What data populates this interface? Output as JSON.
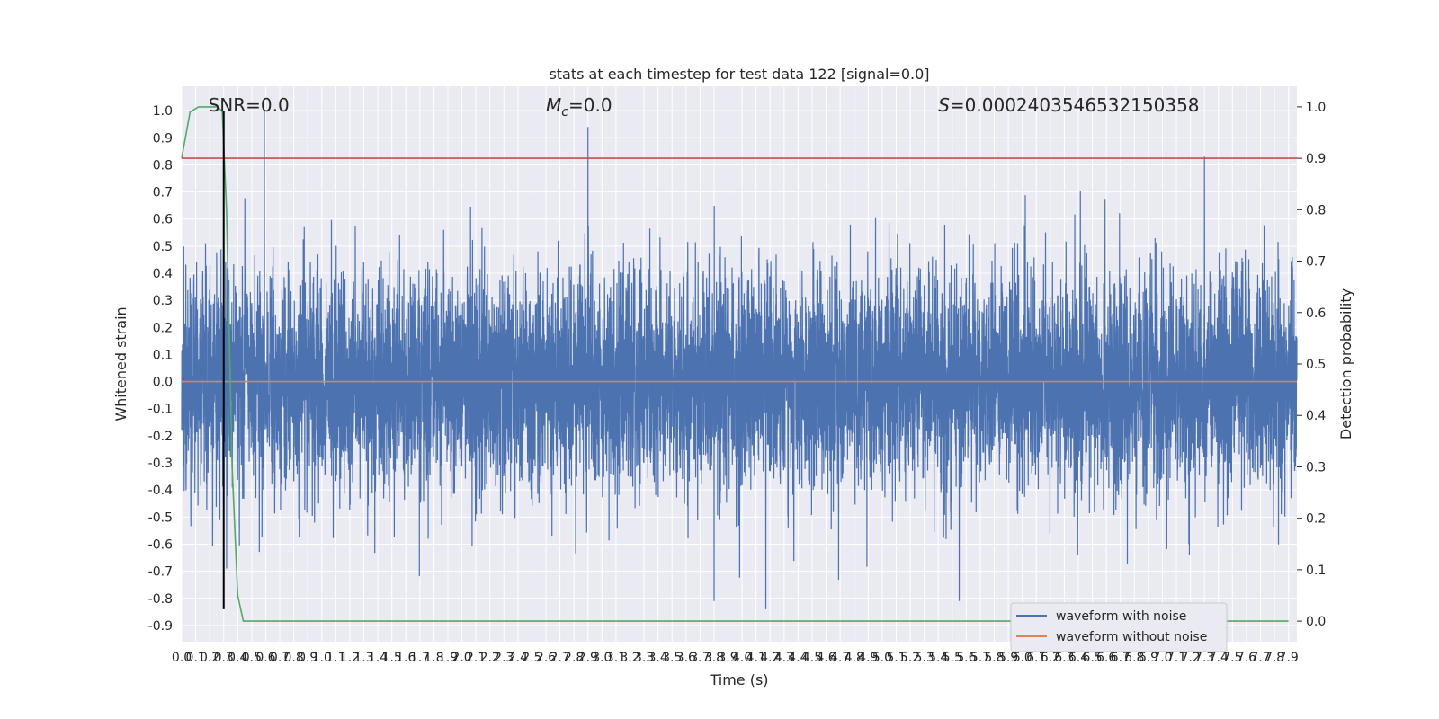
{
  "chart_data": {
    "type": "line",
    "title": "stats at each timestep for test data 122 [signal=0.0]",
    "xlabel": "Time (s)",
    "ylabel": "Whitened strain",
    "y2label": "Detection probability",
    "xlim": [
      0.0,
      7.96
    ],
    "ylim": [
      -0.96,
      1.09
    ],
    "y2lim": [
      -0.04,
      1.04
    ],
    "x_ticks": [
      "0.0",
      "0.1",
      "0.2",
      "0.3",
      "0.4",
      "0.5",
      "0.6",
      "0.7",
      "0.8",
      "0.9",
      "1.0",
      "1.1",
      "1.2",
      "1.3",
      "1.4",
      "1.5",
      "1.6",
      "1.7",
      "1.8",
      "1.9",
      "2.0",
      "2.1",
      "2.2",
      "2.3",
      "2.4",
      "2.5",
      "2.6",
      "2.7",
      "2.8",
      "2.9",
      "3.0",
      "3.1",
      "3.2",
      "3.3",
      "3.4",
      "3.5",
      "3.6",
      "3.7",
      "3.8",
      "3.9",
      "4.0",
      "4.1",
      "4.2",
      "4.3",
      "4.4",
      "4.5",
      "4.6",
      "4.7",
      "4.8",
      "4.9",
      "5.0",
      "5.1",
      "5.2",
      "5.3",
      "5.4",
      "5.5",
      "5.6",
      "5.7",
      "5.8",
      "5.9",
      "6.0",
      "6.1",
      "6.2",
      "6.3",
      "6.4",
      "6.5",
      "6.6",
      "6.7",
      "6.8",
      "6.9",
      "7.0",
      "7.1",
      "7.2",
      "7.3",
      "7.4",
      "7.5",
      "7.6",
      "7.7",
      "7.8",
      "7.9"
    ],
    "y_ticks": [
      "-0.9",
      "-0.8",
      "-0.7",
      "-0.6",
      "-0.5",
      "-0.4",
      "-0.3",
      "-0.2",
      "-0.1",
      "0.0",
      "0.1",
      "0.2",
      "0.3",
      "0.4",
      "0.5",
      "0.6",
      "0.7",
      "0.8",
      "0.9",
      "1.0"
    ],
    "y2_ticks": [
      "0.0",
      "0.1",
      "0.2",
      "0.3",
      "0.4",
      "0.5",
      "0.6",
      "0.7",
      "0.8",
      "0.9",
      "1.0"
    ],
    "series": [
      {
        "name": "waveform with noise",
        "axis": "left",
        "kind": "noise",
        "sigma": 0.2,
        "x_range": [
          0.0,
          7.96
        ],
        "peaks": [
          {
            "x": 0.59,
            "y": 1.0
          },
          {
            "x": 2.9,
            "y": 0.94
          },
          {
            "x": 7.3,
            "y": 0.83
          },
          {
            "x": 0.32,
            "y": -0.69
          },
          {
            "x": 4.17,
            "y": -0.84
          },
          {
            "x": 3.8,
            "y": -0.81
          },
          {
            "x": 5.55,
            "y": -0.81
          }
        ]
      },
      {
        "name": "waveform without noise",
        "axis": "left",
        "x": [
          0.0,
          7.96
        ],
        "y": [
          0.0,
          0.0
        ]
      },
      {
        "name": "detection probability",
        "axis": "right",
        "x": [
          0.0,
          0.06,
          0.12,
          0.2,
          0.26,
          0.29,
          0.32,
          0.36,
          0.4,
          0.44,
          7.9
        ],
        "y": [
          0.9,
          0.99,
          1.0,
          1.0,
          1.0,
          0.99,
          0.8,
          0.3,
          0.05,
          0.0,
          0.0
        ]
      },
      {
        "name": "threshold",
        "axis": "right",
        "x": [
          0.0,
          7.96
        ],
        "y": [
          0.9,
          0.9
        ]
      },
      {
        "name": "marker",
        "axis": "left",
        "x": [
          0.3,
          0.3
        ],
        "y": [
          1.0,
          -0.84
        ]
      }
    ],
    "legend": {
      "placement": "lower-right",
      "entries": [
        "waveform with noise",
        "waveform without noise"
      ]
    },
    "annotations": [
      {
        "prefix": "SNR",
        "text": "=0.0",
        "x": 0.19
      },
      {
        "prefix": "M",
        "subscript": "c",
        "text": "=0.0",
        "x": 2.6
      },
      {
        "prefix": "S",
        "text": "=0.0002403546532150358",
        "x": 5.4
      }
    ],
    "grid": true,
    "colors": {
      "noise": "#4c72b0",
      "clean": "#dd8452",
      "probability": "#55a868",
      "threshold": "#c44e52",
      "marker": "#000000",
      "plot_bg": "#eaeaf2",
      "grid": "#ffffff"
    }
  }
}
